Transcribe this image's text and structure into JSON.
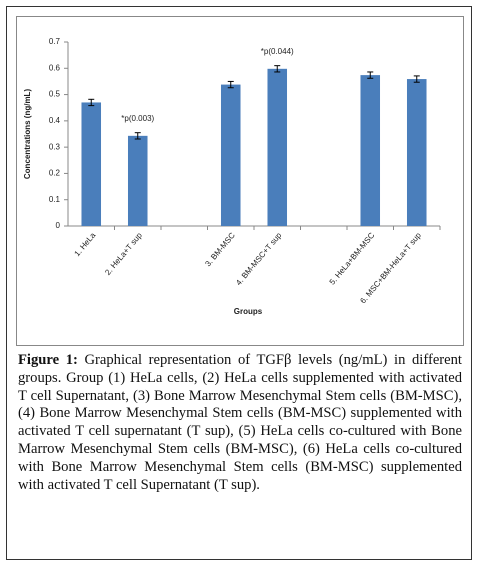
{
  "chart_data": {
    "type": "bar",
    "categories": [
      "1. HeLa",
      "2. HeLa+T sup",
      null,
      "3. BM-MSC",
      "4. BM-MSC+T sup",
      null,
      "5. HeLa+BM-MSC",
      "6. MSC+BM-HeLa+T sup"
    ],
    "values": [
      0.47,
      0.343,
      null,
      0.538,
      0.598,
      null,
      0.574,
      0.559
    ],
    "errors": [
      0.012,
      0.012,
      null,
      0.012,
      0.012,
      null,
      0.012,
      0.012
    ],
    "color": "#4a7ebb",
    "ylim": [
      0,
      0.7
    ],
    "yticks": [
      0,
      0.1,
      0.2,
      0.3,
      0.4,
      0.5,
      0.6,
      0.7
    ],
    "y_label": "Concentrations (ng/mL)",
    "x_label": "Groups",
    "annotations": [
      {
        "text": "*p(0.003)",
        "index": 1
      },
      {
        "text": "*p(0.044)",
        "index": 4
      }
    ]
  },
  "caption": {
    "label": "Figure 1:",
    "text": "Graphical representation of TGFβ levels (ng/mL) in different groups. Group (1) HeLa cells, (2) HeLa cells supplemented with activated T cell Supernatant, (3) Bone Marrow Mesenchymal Stem cells (BM-MSC), (4) Bone Marrow Mesenchymal Stem cells (BM-MSC) supplemented with activated T cell supernatant (T sup), (5) HeLa cells co-cultured with Bone Marrow Mesenchymal Stem cells (BM-MSC), (6) HeLa cells co-cultured with Bone Marrow Mesenchymal Stem cells (BM-MSC) supplemented with activated T cell Supernatant (T sup)."
  }
}
